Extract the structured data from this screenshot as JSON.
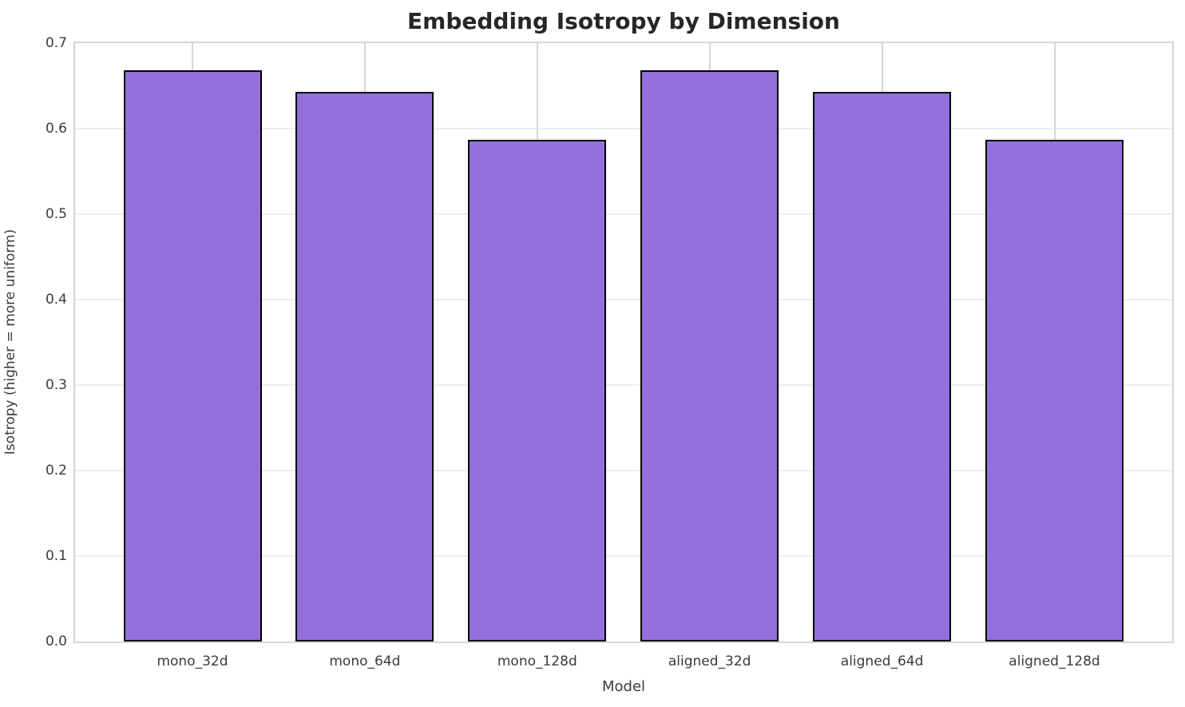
{
  "chart_data": {
    "type": "bar",
    "title": "Embedding Isotropy by Dimension",
    "xlabel": "Model",
    "ylabel": "Isotropy (higher = more uniform)",
    "categories": [
      "mono_32d",
      "mono_64d",
      "mono_128d",
      "aligned_32d",
      "aligned_64d",
      "aligned_128d"
    ],
    "values": [
      0.668,
      0.643,
      0.587,
      0.668,
      0.643,
      0.587
    ],
    "ylim": [
      0.0,
      0.7
    ],
    "yticks": [
      0.0,
      0.1,
      0.2,
      0.3,
      0.4,
      0.5,
      0.6,
      0.7
    ],
    "ytick_labels": [
      "0.0",
      "0.1",
      "0.2",
      "0.3",
      "0.4",
      "0.5",
      "0.6",
      "0.7"
    ],
    "grid": true,
    "legend": null,
    "colors": {
      "bar_fill": "#9370DB",
      "bar_edge": "#000000",
      "h_grid": "#ededed",
      "v_grid": "#d5d5d5",
      "plot_border": "#d5d5d5",
      "title_text": "#262626",
      "tick_text": "#3b3b3b",
      "background": "#ffffff"
    }
  }
}
